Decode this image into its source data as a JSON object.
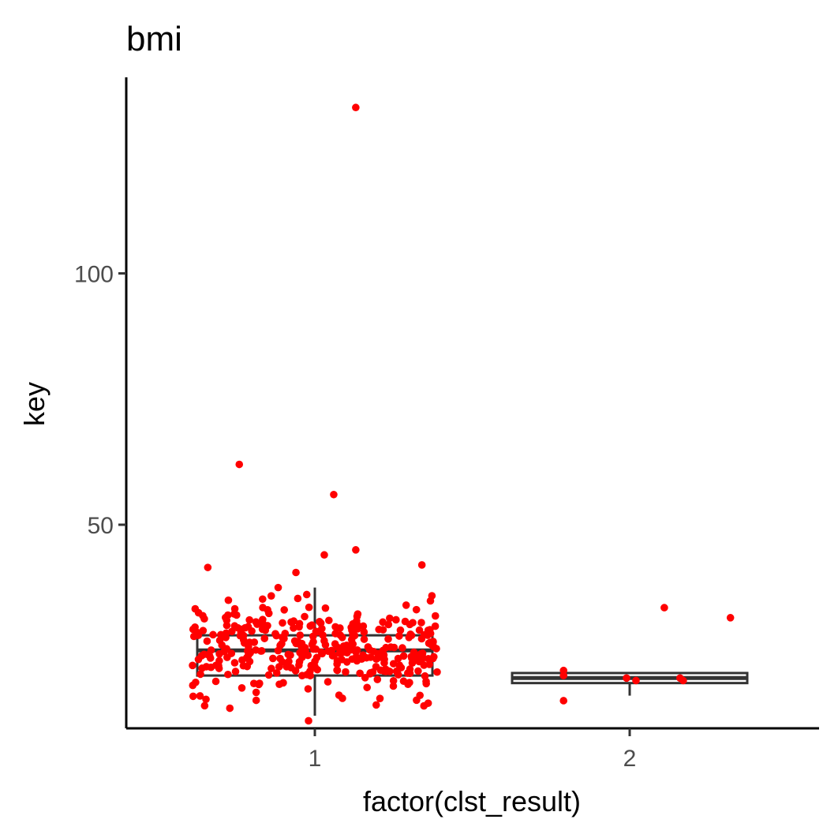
{
  "chart_data": {
    "type": "scatter",
    "subtype": "boxplot_with_jitter",
    "title": "bmi",
    "xlabel": "factor(clst_result)",
    "ylabel": "key",
    "categories": [
      "1",
      "2"
    ],
    "ylim": [
      9.5,
      139
    ],
    "yticks": [
      50,
      100
    ],
    "grid": false,
    "point_color": "#ff0000",
    "box_color": "#333333",
    "boxes": [
      {
        "category": "1",
        "whisker_low": 12,
        "q1": 20,
        "median": 25,
        "q3": 28,
        "whisker_high": 37.5
      },
      {
        "category": "2",
        "whisker_low": 16,
        "q1": 18.5,
        "median": 19.5,
        "q3": 20.5,
        "whisker_high": 20.5
      }
    ],
    "points": [
      {
        "x": 1,
        "jitter": 0.13,
        "y": 133
      },
      {
        "x": 1,
        "jitter": -0.24,
        "y": 62
      },
      {
        "x": 1,
        "jitter": 0.06,
        "y": 56
      },
      {
        "x": 1,
        "jitter": 0.13,
        "y": 45
      },
      {
        "x": 1,
        "jitter": 0.03,
        "y": 44
      },
      {
        "x": 1,
        "jitter": 0.34,
        "y": 42
      },
      {
        "x": 1,
        "jitter": -0.34,
        "y": 41.5
      },
      {
        "x": 1,
        "jitter": -0.06,
        "y": 40.5
      },
      {
        "x": 1,
        "jitter": 0.29,
        "y": 34
      },
      {
        "x": 1,
        "jitter": -0.28,
        "y": 31
      },
      {
        "x": 1,
        "jitter": -0.37,
        "y": 28
      },
      {
        "x": 1,
        "jitter": 0.36,
        "y": 29
      },
      {
        "x": 1,
        "jitter": -0.35,
        "y": 14
      },
      {
        "x": 1,
        "jitter": -0.27,
        "y": 13.5
      },
      {
        "x": 1,
        "jitter": -0.02,
        "y": 11
      },
      {
        "x": 1,
        "jitter": 0.36,
        "y": 14.5
      },
      {
        "x": 2,
        "jitter": 0.11,
        "y": 33.5
      },
      {
        "x": 2,
        "jitter": 0.32,
        "y": 31.5
      },
      {
        "x": 2,
        "jitter": -0.21,
        "y": 15
      },
      {
        "x": 2,
        "jitter": -0.21,
        "y": 21
      },
      {
        "x": 2,
        "jitter": -0.21,
        "y": 20
      },
      {
        "x": 2,
        "jitter": -0.01,
        "y": 19.5
      },
      {
        "x": 2,
        "jitter": 0.02,
        "y": 19
      },
      {
        "x": 2,
        "jitter": 0.16,
        "y": 19.5
      },
      {
        "x": 2,
        "jitter": 0.17,
        "y": 19
      }
    ],
    "dense_points": [
      {
        "category": "1",
        "count": 340,
        "x_spread": 0.39,
        "y_range": [
          12.5,
          40
        ],
        "center": 25.5,
        "spread": 4.5
      }
    ]
  }
}
